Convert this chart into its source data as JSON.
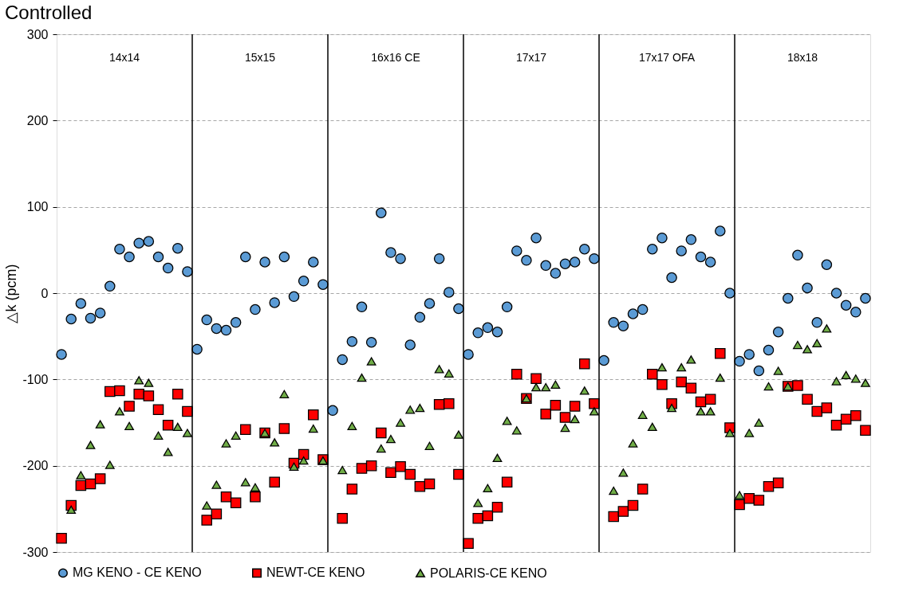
{
  "chart_data": {
    "type": "scatter",
    "title": "Controlled",
    "ylabel": "△k (pcm)",
    "categories": [
      null,
      null,
      null,
      null,
      null,
      null,
      null,
      null,
      null,
      null,
      null,
      null,
      null,
      null,
      null,
      null,
      null,
      null,
      null,
      null,
      null,
      null,
      null,
      null,
      null,
      null,
      null,
      null,
      null,
      null,
      null,
      null,
      null,
      null,
      null,
      null,
      null,
      null,
      null,
      null,
      null,
      null,
      null,
      null,
      null,
      null,
      null,
      null,
      null,
      null,
      null,
      null,
      null,
      null,
      null,
      null,
      null,
      null,
      null,
      null,
      null,
      null,
      null,
      null,
      null,
      null,
      null,
      null,
      null,
      null,
      null,
      null,
      null,
      null,
      null,
      null,
      null,
      null,
      null,
      null,
      null,
      null,
      null,
      null
    ],
    "annotations": [
      "14x14",
      "15x15",
      "16x16 CE",
      "17x17",
      "17x17 OFA",
      "18x18"
    ],
    "ylim": [
      -300,
      300
    ],
    "yticks": [
      -300,
      -200,
      -100,
      0,
      100,
      200,
      300
    ],
    "grid": "y",
    "legend": "bottom",
    "tick_labels": "y",
    "series": [
      {
        "name": "MG KENO - CE KENO",
        "color": "#5b9bd5",
        "marker": "circle",
        "values": [
          -71,
          -30,
          -12,
          -29,
          -23,
          8,
          51,
          42,
          58,
          60,
          42,
          29,
          52,
          25,
          -65,
          -31,
          -41,
          -43,
          -34,
          42,
          -19,
          36,
          -11,
          42,
          -4,
          14,
          36,
          10,
          -136,
          -77,
          -56,
          -16,
          -57,
          93,
          47,
          40,
          -60,
          -28,
          -12,
          40,
          1,
          -18,
          -71,
          -46,
          -40,
          -45,
          -16,
          49,
          38,
          64,
          32,
          23,
          34,
          36,
          51,
          40,
          -78,
          -34,
          -38,
          -24,
          -19,
          51,
          64,
          18,
          49,
          62,
          42,
          36,
          72,
          0,
          -79,
          -71,
          -90,
          -66,
          -45,
          -6,
          44,
          6,
          -34,
          33,
          0,
          -14,
          -22,
          -6
        ]
      },
      {
        "name": "NEWT-CE KENO",
        "color": "#ff0000",
        "marker": "square",
        "values": [
          -284,
          -246,
          -223,
          -221,
          -215,
          -114,
          -113,
          -131,
          -117,
          -119,
          -135,
          -153,
          -117,
          -137,
          null,
          -263,
          -256,
          -236,
          -243,
          -158,
          -236,
          -162,
          -219,
          -157,
          -197,
          -187,
          -141,
          -193,
          null,
          -261,
          -227,
          -203,
          -200,
          -162,
          -208,
          -201,
          -210,
          -224,
          -221,
          -129,
          -128,
          -210,
          -290,
          -261,
          -258,
          -248,
          -219,
          -94,
          -122,
          -99,
          -140,
          -130,
          -144,
          -131,
          -82,
          -128,
          null,
          -259,
          -253,
          -246,
          -227,
          -94,
          -106,
          -128,
          -103,
          -110,
          -126,
          -123,
          -70,
          -156,
          -245,
          -238,
          -240,
          -224,
          -220,
          -108,
          -107,
          -123,
          -137,
          -133,
          -153,
          -146,
          -142,
          -159
        ]
      },
      {
        "name": "POLARIS-CE KENO",
        "color": "#70ad47",
        "marker": "triangle",
        "values": [
          null,
          -251,
          -211,
          -176,
          -152,
          -199,
          -137,
          -154,
          -101,
          -104,
          -165,
          -184,
          -155,
          -162,
          null,
          -246,
          -222,
          -174,
          -165,
          -219,
          -225,
          -162,
          -173,
          -117,
          -201,
          -194,
          -157,
          -194,
          null,
          -205,
          -154,
          -98,
          -79,
          -180,
          -169,
          -150,
          -135,
          -133,
          -177,
          -88,
          -93,
          -164,
          null,
          -243,
          -226,
          -191,
          -148,
          -159,
          -122,
          -109,
          -109,
          -106,
          -156,
          -146,
          -113,
          -137,
          null,
          -229,
          -208,
          -174,
          -141,
          -155,
          -86,
          -133,
          -86,
          -77,
          -137,
          -137,
          -98,
          -162,
          -234,
          -162,
          -150,
          -108,
          -90,
          -108,
          -60,
          -65,
          -58,
          -41,
          -102,
          -95,
          -99,
          -104
        ]
      }
    ]
  }
}
